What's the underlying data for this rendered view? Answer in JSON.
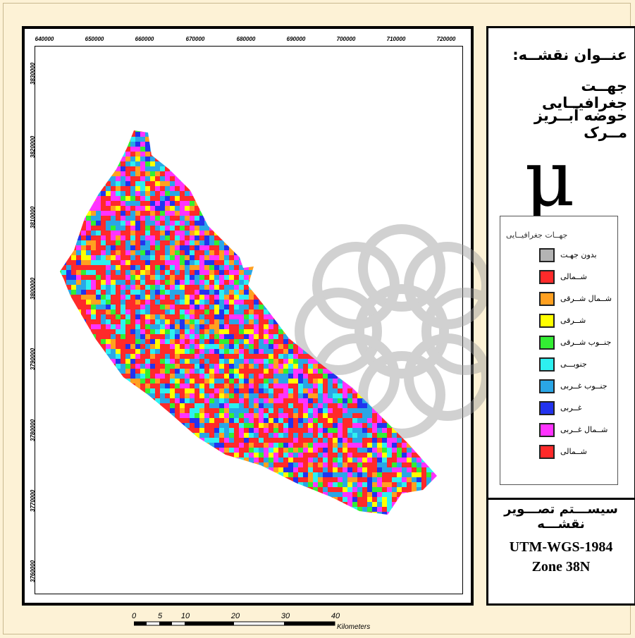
{
  "title": {
    "line1": "عنــوان نقشــه:",
    "line2": "جهــت جغرافیــایی",
    "line3": "حوضه آبــریز مــرک"
  },
  "north_arrow": {
    "symbol": "μ",
    "icon": "north-arrow-icon"
  },
  "x_ticks": [
    "640000",
    "650000",
    "660000",
    "670000",
    "680000",
    "690000",
    "700000",
    "710000",
    "720000"
  ],
  "y_ticks": [
    "3830000",
    "3820000",
    "3810000",
    "3800000",
    "3790000",
    "3780000",
    "3770000",
    "3760000"
  ],
  "legend": {
    "title": "جهــات جغرافیــایی",
    "items": [
      {
        "label": "بدون جهـت",
        "color": "#b3b3b3"
      },
      {
        "label": "شــمالی",
        "color": "#ff2a2a"
      },
      {
        "label": "شــمال شــرقی",
        "color": "#ffa020"
      },
      {
        "label": "شــرقی",
        "color": "#ffff00"
      },
      {
        "label": "جنــوب شــرقی",
        "color": "#33ee33"
      },
      {
        "label": "جنوبـــی",
        "color": "#2ef0f0"
      },
      {
        "label": "جنــوب غــربی",
        "color": "#2aa6e6"
      },
      {
        "label": "غــربی",
        "color": "#2233ee"
      },
      {
        "label": "شــمال غــربی",
        "color": "#ff33ff"
      },
      {
        "label": "شــمالی",
        "color": "#ff2a2a"
      }
    ]
  },
  "projection": {
    "title": "سیســـتم تصـــویر نقشـــه",
    "line1": "UTM-WGS-1984",
    "line2": "Zone 38N"
  },
  "scale_bar": {
    "labels": [
      "0",
      "5",
      "10",
      "20",
      "30",
      "40"
    ],
    "unit": "Kilometers"
  }
}
